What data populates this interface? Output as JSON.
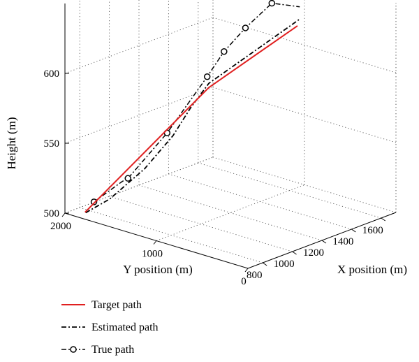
{
  "chart_data": {
    "type": "line",
    "projection": "3d",
    "zlabel": "Height (m)",
    "ylabel": "Y position (m)",
    "xlabel": "X position (m)",
    "z_ticks": [
      500,
      550,
      600
    ],
    "y_ticks": [
      0,
      1000,
      2000
    ],
    "x_ticks": [
      800,
      1000,
      1200,
      1400,
      1600
    ],
    "xlim": [
      700,
      1700
    ],
    "ylim": [
      0,
      2000
    ],
    "zlim": [
      500,
      650
    ],
    "grid": true,
    "legend_placement": "bottom-left",
    "colors": {
      "target": "#e02020",
      "estimated": "#000000",
      "true": "#000000"
    },
    "series": [
      {
        "name": "Target path",
        "style": "solid",
        "color": "#e02020",
        "points": [
          {
            "x": 700,
            "y": 1780,
            "z": 505
          },
          {
            "x": 1060,
            "y": 1010,
            "z": 595
          },
          {
            "x": 1690,
            "y": 1060,
            "z": 613
          }
        ]
      },
      {
        "name": "Estimated path",
        "style": "dash-dot",
        "color": "#000000",
        "points": [
          {
            "x": 710,
            "y": 1790,
            "z": 504
          },
          {
            "x": 780,
            "y": 1640,
            "z": 514
          },
          {
            "x": 880,
            "y": 1420,
            "z": 536
          },
          {
            "x": 960,
            "y": 1240,
            "z": 560
          },
          {
            "x": 1010,
            "y": 1130,
            "z": 580
          },
          {
            "x": 1060,
            "y": 1010,
            "z": 598
          },
          {
            "x": 1700,
            "y": 1060,
            "z": 617
          }
        ]
      },
      {
        "name": "True path",
        "style": "dash-dot-marker",
        "color": "#000000",
        "points": [
          {
            "x": 760,
            "y": 1780,
            "z": 510
          },
          {
            "x": 840,
            "y": 1600,
            "z": 525
          },
          {
            "x": 860,
            "y": 1570,
            "z": 527
          },
          {
            "x": 970,
            "y": 1320,
            "z": 560
          },
          {
            "x": 1080,
            "y": 1060,
            "z": 601
          },
          {
            "x": 1200,
            "y": 1070,
            "z": 614
          },
          {
            "x": 1360,
            "y": 1095,
            "z": 624
          },
          {
            "x": 1560,
            "y": 1130,
            "z": 633
          },
          {
            "x": 1705,
            "y": 1060,
            "z": 626
          }
        ],
        "marker_indices": [
          0,
          2,
          3,
          4,
          5,
          6,
          7
        ]
      }
    ]
  }
}
